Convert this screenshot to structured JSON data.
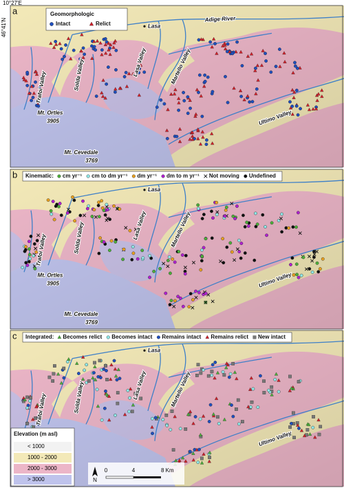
{
  "axes": {
    "longitude": "10°27'E",
    "latitude": "46°41'N"
  },
  "panels": [
    {
      "letter": "a",
      "legend_title": "Geomorphologic",
      "legend_items": [
        {
          "label": "Intact",
          "color": "#1f4fbf",
          "symbol": "circle"
        },
        {
          "label": "Relict",
          "color": "#d0202a",
          "symbol": "triangle"
        }
      ],
      "places": [
        "Lasa",
        "Adige River",
        "Lasa Valley",
        "Martello Valley",
        "Solda Valley",
        "Trafoi Valley",
        "Mt. Ortles",
        "3905",
        "Ultimo Valley",
        "Mt. Cevedale",
        "3769"
      ]
    },
    {
      "letter": "b",
      "legend_title": "Kinematic:",
      "legend_items": [
        {
          "label": "cm yr⁻¹",
          "color": "#4caf3a",
          "symbol": "circle"
        },
        {
          "label": "cm to dm yr⁻¹",
          "color": "#8fe6e6",
          "symbol": "circle"
        },
        {
          "label": "dm yr⁻¹",
          "color": "#e8a020",
          "symbol": "circle"
        },
        {
          "label": "dm to m yr⁻¹",
          "color": "#b020d0",
          "symbol": "circle"
        },
        {
          "label": "Not moving",
          "color": "#111111",
          "symbol": "cross"
        },
        {
          "label": "Undefined",
          "color": "#111111",
          "symbol": "circle"
        }
      ],
      "places": [
        "Lasa",
        "Lasa Valley",
        "Solda Valley",
        "Trafoi Valley",
        "Martello Valley",
        "Mt. Ortles",
        "3905",
        "Ultimo Valley",
        "Mt. Cevedale",
        "3769"
      ]
    },
    {
      "letter": "c",
      "legend_title": "Integrated:",
      "legend_items": [
        {
          "label": "Becomes relict",
          "color": "#4caf3a",
          "symbol": "triangle"
        },
        {
          "label": "Becomes intact",
          "color": "#8fe6e6",
          "symbol": "circle"
        },
        {
          "label": "Remains intact",
          "color": "#1f4fbf",
          "symbol": "circle"
        },
        {
          "label": "Remains relict",
          "color": "#d0202a",
          "symbol": "triangle"
        },
        {
          "label": "New intact",
          "color": "#777777",
          "symbol": "square"
        }
      ],
      "places": [
        "Lasa",
        "Lasa Valley",
        "Solda Valley",
        "Martello Valley",
        "Trafoi Valley",
        "Ultimo Valley"
      ]
    }
  ],
  "elevation_legend": {
    "title": "Elevation (m asl)",
    "classes": [
      {
        "label": "< 1000",
        "color": "#f2f2f2"
      },
      {
        "label": "1000 - 2000",
        "color": "#f3e9b8"
      },
      {
        "label": "2000 - 3000",
        "color": "#ecb6c8"
      },
      {
        "label": "> 3000",
        "color": "#bfc3ec"
      }
    ]
  },
  "scale_bar": {
    "north": "N",
    "ticks": [
      "0",
      "4",
      "8 Km"
    ]
  }
}
